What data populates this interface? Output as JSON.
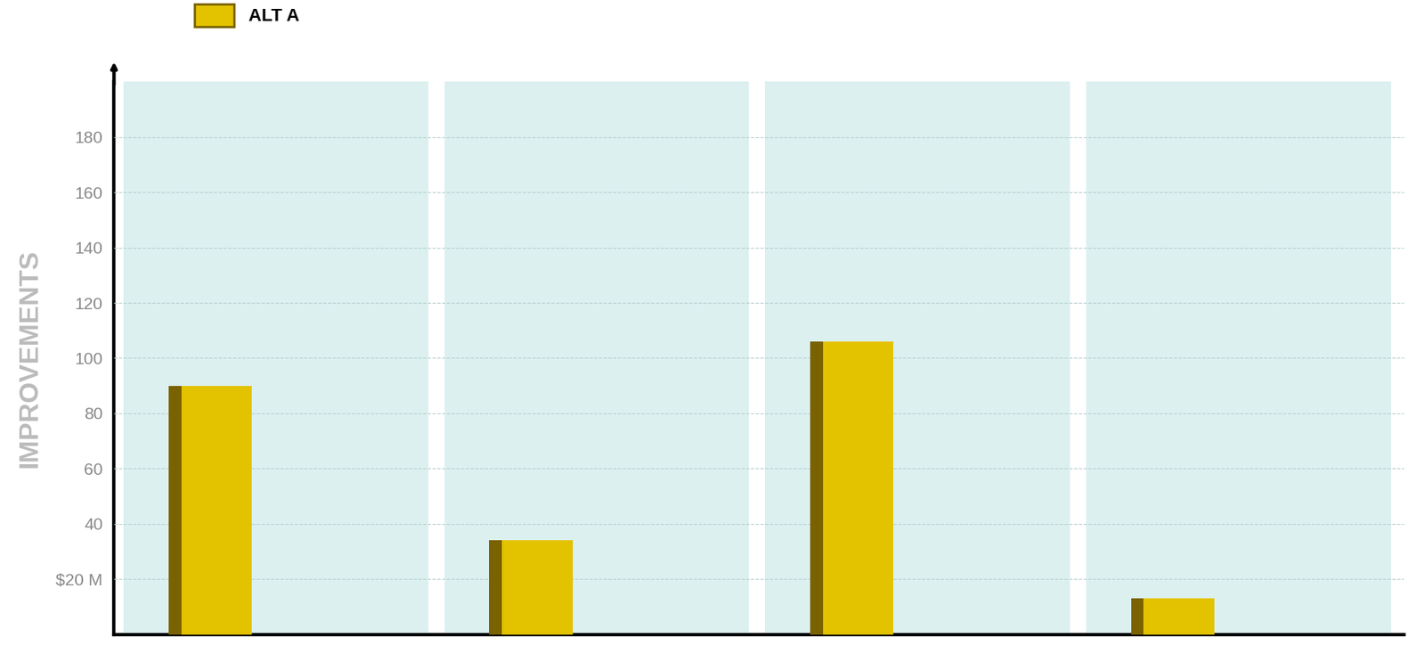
{
  "chart_data": {
    "type": "bar",
    "y_label": "IMPROVEMENTS",
    "categories": [
      null,
      null,
      null,
      null
    ],
    "series": [
      {
        "name": "ALT A",
        "color": "#e3c200",
        "values": [
          90,
          34,
          106,
          13
        ]
      }
    ],
    "ylim": [
      0,
      200
    ],
    "yticks": [
      {
        "value": 20,
        "label": "$20 M"
      },
      40,
      60,
      80,
      100,
      120,
      140,
      160,
      180
    ],
    "grid": true,
    "legend": "upper left",
    "tick_labels": "y"
  }
}
